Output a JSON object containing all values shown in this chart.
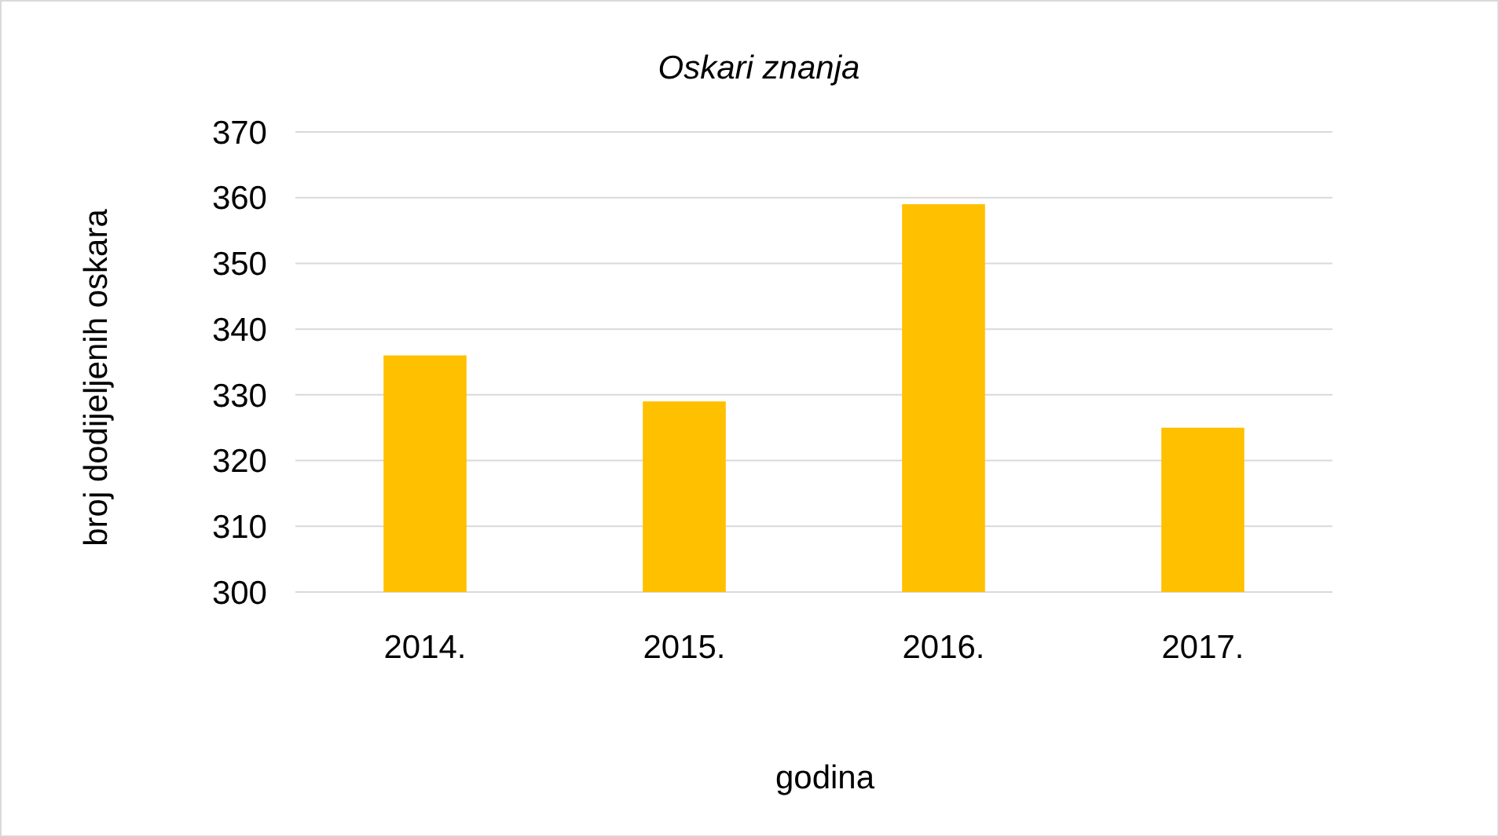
{
  "chart_data": {
    "type": "bar",
    "title": "Oskari znanja",
    "xlabel": "godina",
    "ylabel": "broj dodijeljenih oskara",
    "categories": [
      "2014.",
      "2015.",
      "2016.",
      "2017."
    ],
    "values": [
      336,
      329,
      359,
      325
    ],
    "color": "#ffc000",
    "ylim": [
      300,
      370
    ],
    "yticks": [
      300,
      310,
      320,
      330,
      340,
      350,
      360,
      370
    ],
    "grid": "y"
  }
}
